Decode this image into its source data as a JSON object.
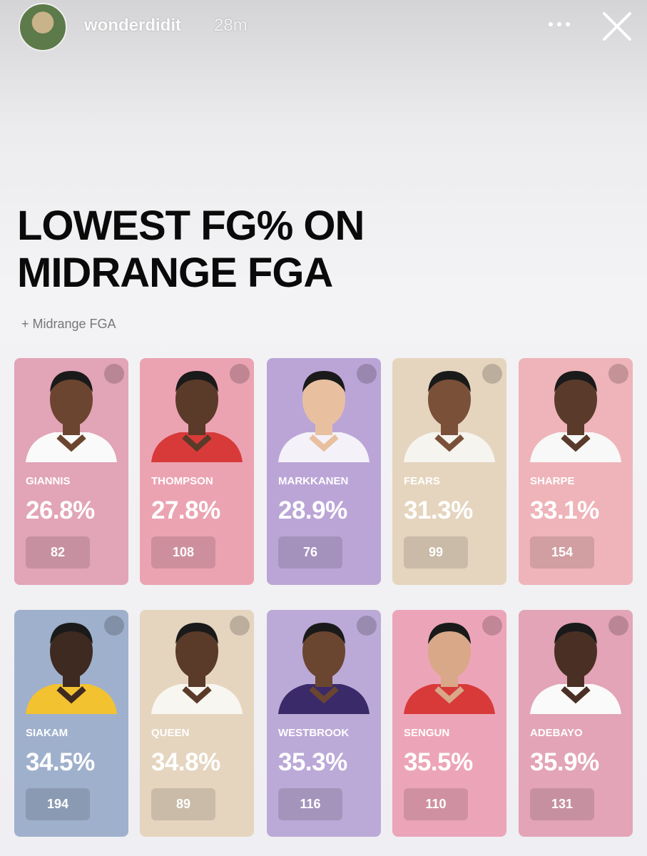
{
  "header": {
    "username": "wonderdidit",
    "time": "28m"
  },
  "title": [
    "LOWEST FG% ON",
    "MIDRANGE FGA"
  ],
  "subtitle": "+ Midrange FGA",
  "cards": [
    {
      "name": "GIANNIS",
      "fg_pct": "26.8%",
      "fga": 82
    },
    {
      "name": "THOMPSON",
      "fg_pct": "27.8%",
      "fga": 108
    },
    {
      "name": "MARKKANEN",
      "fg_pct": "28.9%",
      "fga": 76
    },
    {
      "name": "FEARS",
      "fg_pct": "31.3%",
      "fga": 99
    },
    {
      "name": "SHARPE",
      "fg_pct": "33.1%",
      "fga": 154
    },
    {
      "name": "SIAKAM",
      "fg_pct": "34.5%",
      "fga": 194
    },
    {
      "name": "QUEEN",
      "fg_pct": "34.8%",
      "fga": 89
    },
    {
      "name": "WESTBROOK",
      "fg_pct": "35.3%",
      "fga": 116
    },
    {
      "name": "SENGUN",
      "fg_pct": "35.5%",
      "fga": 110
    },
    {
      "name": "ADEBAYO",
      "fg_pct": "35.9%",
      "fga": 131
    }
  ]
}
